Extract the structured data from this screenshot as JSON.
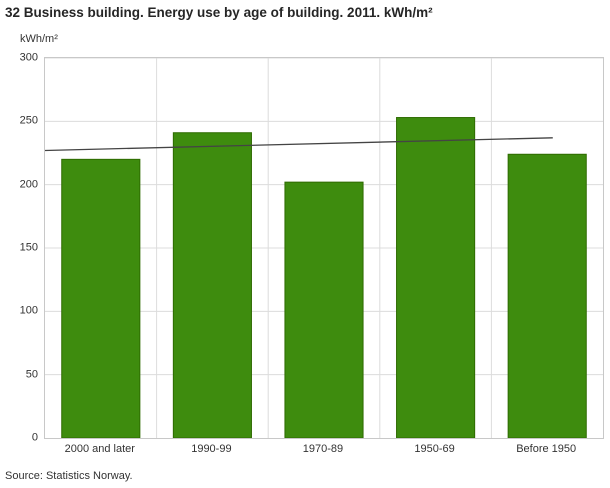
{
  "header": {
    "title": "32 Business building. Energy use by age of building. 2011. kWh/m²"
  },
  "source": "Source: Statistics Norway.",
  "chart_data": {
    "type": "bar",
    "title": "32 Business building. Energy use by age of building. 2011. kWh/m²",
    "ylabel": "kWh/m²",
    "xlabel": "",
    "categories": [
      "2000 and later",
      "1990-99",
      "1970-89",
      "1950-69",
      "Before 1950"
    ],
    "values": [
      220,
      241,
      202,
      253,
      224
    ],
    "series": [
      {
        "name": "Energy use by age of building",
        "type": "bar",
        "values": [
          220,
          241,
          202,
          253,
          224
        ]
      },
      {
        "name": "Trend line",
        "type": "line",
        "points": [
          {
            "x_frac": 0.0,
            "value": 227
          },
          {
            "x_frac": 0.91,
            "value": 237
          }
        ]
      }
    ],
    "ylim": [
      0,
      300
    ],
    "yticks": [
      0,
      50,
      100,
      150,
      200,
      250,
      300
    ],
    "grid": true,
    "legend": "none",
    "colors": {
      "bar": "#3e8c0e",
      "bar_border": "#2e6b00",
      "trend": "#444444",
      "grid": "#dcdcdc",
      "axis": "#c8c8c8",
      "text": "#333333",
      "title": "#262626"
    }
  }
}
